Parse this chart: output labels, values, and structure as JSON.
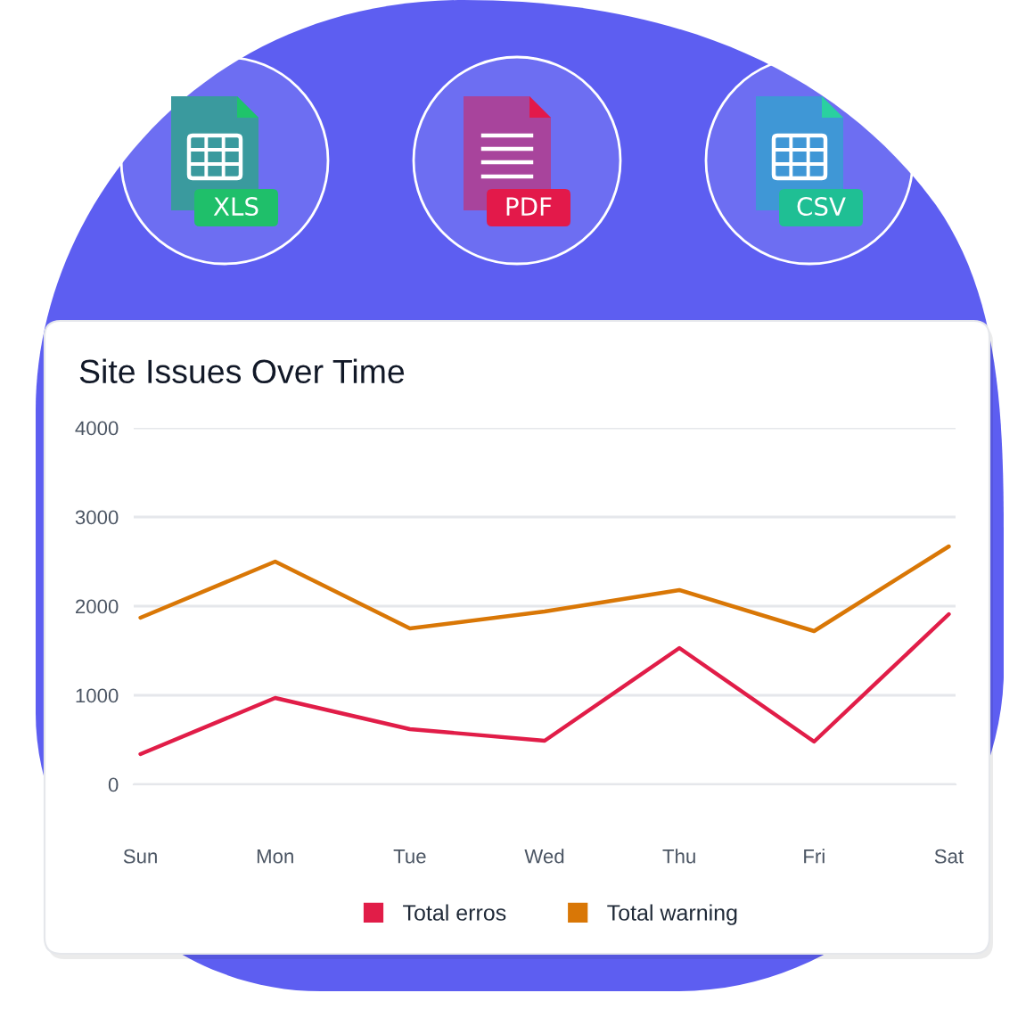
{
  "chart_data": {
    "type": "line",
    "title": "Site Issues Over Time",
    "categories": [
      "Sun",
      "Mon",
      "Tue",
      "Wed",
      "Thu",
      "Fri",
      "Sat"
    ],
    "series": [
      {
        "name": "Total erros",
        "color": "#e11d48",
        "values": [
          340,
          970,
          620,
          490,
          1530,
          480,
          1910
        ]
      },
      {
        "name": "Total warning",
        "color": "#d97706",
        "values": [
          1870,
          2500,
          1750,
          1940,
          2180,
          1720,
          2670
        ]
      }
    ],
    "ylim": [
      0,
      4000
    ],
    "yticks": [
      0,
      1000,
      2000,
      3000,
      4000
    ],
    "grid": "y",
    "legend": "bottom",
    "annotations": [
      "XLS",
      "PDF",
      "CSV"
    ]
  }
}
